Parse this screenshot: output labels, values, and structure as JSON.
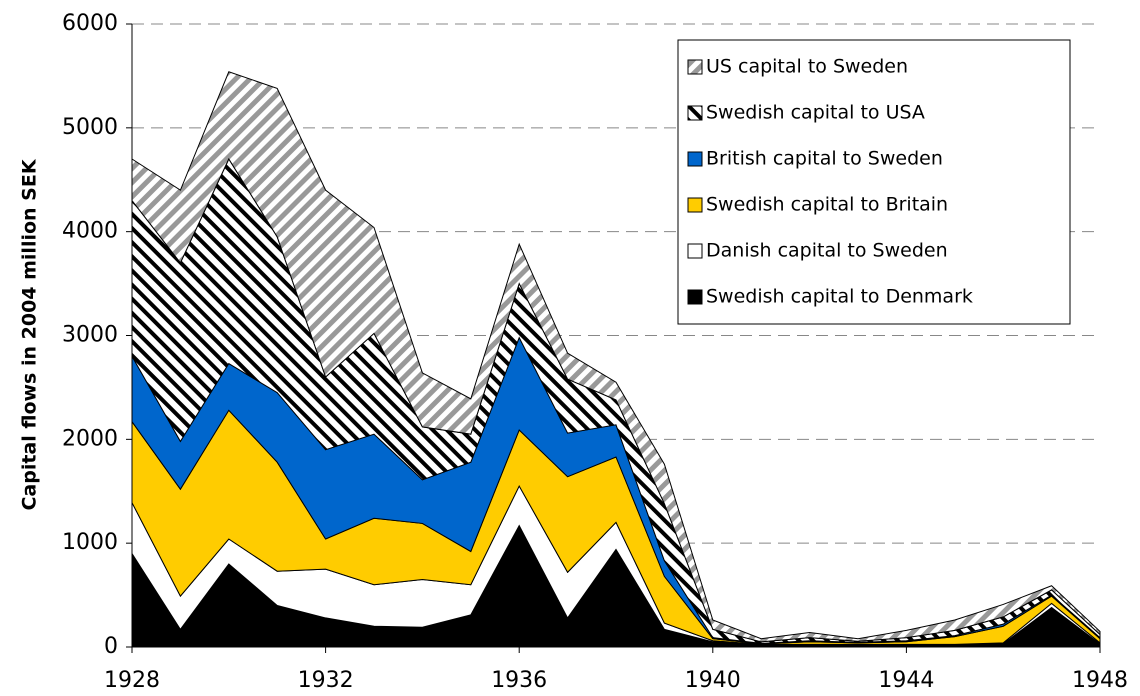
{
  "chart_data": {
    "type": "stacked-area",
    "y_label": "Capital flows in 2004 million SEK",
    "x": [
      1928,
      1929,
      1930,
      1931,
      1932,
      1933,
      1934,
      1935,
      1936,
      1937,
      1938,
      1939,
      1940,
      1941,
      1942,
      1943,
      1944,
      1945,
      1946,
      1947,
      1948
    ],
    "xlim": [
      1928,
      1948
    ],
    "xticks": [
      1928,
      1932,
      1936,
      1940,
      1944,
      1948
    ],
    "ylim": [
      0,
      6000
    ],
    "yticks": [
      0,
      1000,
      2000,
      3000,
      4000,
      5000,
      6000
    ],
    "grid": true,
    "legend": "top-right",
    "series": [
      {
        "name": "Swedish capital to Denmark",
        "color": "#000000",
        "values": [
          900,
          170,
          800,
          400,
          280,
          200,
          190,
          310,
          1170,
          280,
          940,
          170,
          50,
          20,
          20,
          20,
          20,
          20,
          30,
          380,
          30
        ]
      },
      {
        "name": "Danish capital to Sweden",
        "color": "#ffffff",
        "values": [
          490,
          320,
          240,
          330,
          470,
          400,
          460,
          290,
          380,
          440,
          260,
          60,
          10,
          5,
          5,
          5,
          5,
          5,
          10,
          40,
          10
        ]
      },
      {
        "name": "Swedish capital to Britain",
        "color": "#ffcc00",
        "values": [
          780,
          1030,
          1240,
          1050,
          290,
          640,
          540,
          320,
          540,
          920,
          630,
          450,
          20,
          5,
          25,
          15,
          25,
          75,
          160,
          70,
          40
        ]
      },
      {
        "name": "British capital to Sweden",
        "color": "#0066cc",
        "values": [
          630,
          460,
          450,
          670,
          860,
          810,
          420,
          860,
          890,
          420,
          310,
          150,
          10,
          5,
          10,
          5,
          10,
          10,
          20,
          10,
          10
        ]
      },
      {
        "name": "Swedish capital to USA",
        "color": "#000000",
        "hatch": "backward",
        "values": [
          1500,
          1720,
          1970,
          1500,
          700,
          970,
          510,
          270,
          520,
          520,
          240,
          550,
          80,
          15,
          30,
          10,
          30,
          50,
          70,
          50,
          30
        ]
      },
      {
        "name": "US capital to Sweden",
        "color": "#999999",
        "hatch": "forward",
        "values": [
          400,
          700,
          840,
          1430,
          1800,
          1020,
          520,
          340,
          380,
          250,
          170,
          380,
          90,
          30,
          50,
          25,
          70,
          100,
          120,
          40,
          30
        ]
      }
    ]
  }
}
